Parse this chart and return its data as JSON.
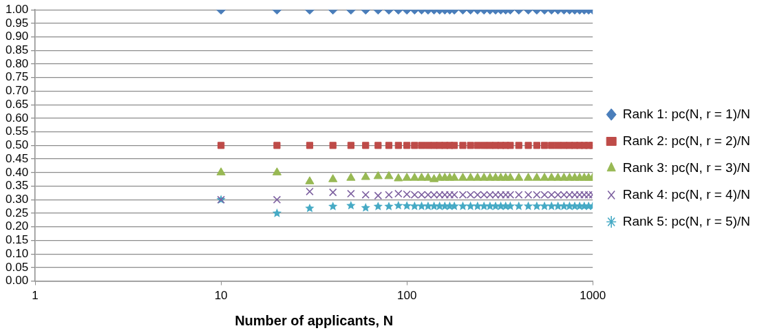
{
  "chart_data": {
    "type": "scatter",
    "xlabel": "Number of applicants, N",
    "log": "x",
    "grid": "y",
    "legend": "right",
    "x": [
      10,
      20,
      30,
      40,
      50,
      60,
      70,
      80,
      90,
      100,
      110,
      120,
      130,
      140,
      150,
      160,
      170,
      180,
      200,
      220,
      240,
      260,
      280,
      300,
      320,
      340,
      360,
      400,
      450,
      500,
      550,
      600,
      650,
      700,
      750,
      800,
      850,
      900,
      950,
      1000
    ],
    "xlim": [
      1,
      1000
    ],
    "xticks": [
      1,
      10,
      100,
      1000
    ],
    "ylim": [
      0,
      1
    ],
    "yticks": [
      {
        "value": 0,
        "label": "0.00"
      },
      {
        "value": 0.05,
        "label": "0.05"
      },
      {
        "value": 0.1,
        "label": "0.10"
      },
      {
        "value": 0.15,
        "label": "0.15"
      },
      {
        "value": 0.2,
        "label": "0.20"
      },
      {
        "value": 0.25,
        "label": "0.25"
      },
      {
        "value": 0.3,
        "label": "0.30"
      },
      {
        "value": 0.35,
        "label": "0.35"
      },
      {
        "value": 0.4,
        "label": "0.40"
      },
      {
        "value": 0.45,
        "label": "0.45"
      },
      {
        "value": 0.5,
        "label": "0.50"
      },
      {
        "value": 0.55,
        "label": "0.55"
      },
      {
        "value": 0.6,
        "label": "0.60"
      },
      {
        "value": 0.65,
        "label": "0.65"
      },
      {
        "value": 0.7,
        "label": "0.70"
      },
      {
        "value": 0.75,
        "label": "0.75"
      },
      {
        "value": 0.8,
        "label": "0.80"
      },
      {
        "value": 0.85,
        "label": "0.85"
      },
      {
        "value": 0.9,
        "label": "0.90"
      },
      {
        "value": 0.95,
        "label": "0.95"
      },
      {
        "value": 1,
        "label": "1.00"
      }
    ],
    "series": [
      {
        "name": "Rank 1: pc(N, r = 1)/N",
        "color": "#4a7ebb",
        "marker": "diamond",
        "values": [
          1,
          1,
          1,
          1,
          1,
          1,
          1,
          1,
          1,
          1,
          1,
          1,
          1,
          1,
          1,
          1,
          1,
          1,
          1,
          1,
          1,
          1,
          1,
          1,
          1,
          1,
          1,
          1,
          1,
          1,
          1,
          1,
          1,
          1,
          1,
          1,
          1,
          1,
          1,
          1
        ]
      },
      {
        "name": "Rank 2: pc(N, r = 2)/N",
        "color": "#be4b48",
        "marker": "square",
        "values": [
          0.5,
          0.5,
          0.5,
          0.5,
          0.5,
          0.5,
          0.5,
          0.5,
          0.5,
          0.5,
          0.5,
          0.5,
          0.5,
          0.5,
          0.5,
          0.5,
          0.5,
          0.5,
          0.5,
          0.5,
          0.5,
          0.5,
          0.5,
          0.5,
          0.5,
          0.5,
          0.5,
          0.5,
          0.5,
          0.5,
          0.5,
          0.5,
          0.5,
          0.5,
          0.5,
          0.5,
          0.5,
          0.5,
          0.5,
          0.5
        ]
      },
      {
        "name": "Rank 3: pc(N, r = 3)/N",
        "color": "#98b954",
        "marker": "triangle",
        "values": [
          0.4,
          0.4,
          0.367,
          0.375,
          0.38,
          0.383,
          0.386,
          0.386,
          0.378,
          0.38,
          0.38,
          0.38,
          0.38,
          0.375,
          0.38,
          0.38,
          0.38,
          0.38,
          0.38,
          0.38,
          0.38,
          0.38,
          0.38,
          0.38,
          0.38,
          0.38,
          0.38,
          0.38,
          0.38,
          0.38,
          0.38,
          0.38,
          0.38,
          0.38,
          0.38,
          0.38,
          0.38,
          0.38,
          0.38,
          0.38
        ]
      },
      {
        "name": "Rank 4: pc(N, r = 4)/N",
        "color": "#7d60a0",
        "marker": "cross",
        "values": [
          0.3,
          0.3,
          0.33,
          0.327,
          0.322,
          0.318,
          0.315,
          0.318,
          0.322,
          0.32,
          0.318,
          0.318,
          0.318,
          0.318,
          0.318,
          0.318,
          0.318,
          0.318,
          0.318,
          0.318,
          0.318,
          0.318,
          0.318,
          0.318,
          0.318,
          0.318,
          0.318,
          0.318,
          0.318,
          0.318,
          0.318,
          0.318,
          0.318,
          0.318,
          0.318,
          0.318,
          0.318,
          0.318,
          0.318,
          0.318
        ]
      },
      {
        "name": "Rank 5: pc(N, r = 5)/N",
        "color": "#46aac5",
        "marker": "star",
        "values": [
          0.3,
          0.25,
          0.268,
          0.275,
          0.278,
          0.27,
          0.275,
          0.275,
          0.278,
          0.277,
          0.276,
          0.276,
          0.276,
          0.276,
          0.276,
          0.276,
          0.276,
          0.276,
          0.276,
          0.276,
          0.276,
          0.276,
          0.276,
          0.276,
          0.276,
          0.276,
          0.276,
          0.276,
          0.276,
          0.276,
          0.276,
          0.276,
          0.276,
          0.276,
          0.276,
          0.276,
          0.276,
          0.276,
          0.276,
          0.276
        ]
      }
    ]
  }
}
